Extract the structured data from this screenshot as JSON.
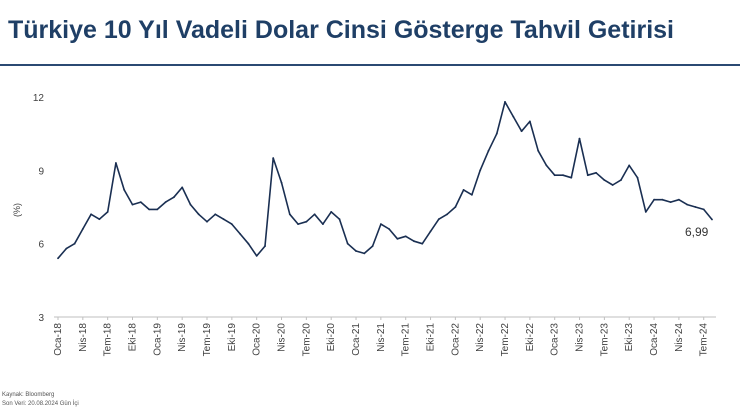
{
  "title": "Türkiye 10 Yıl Vadeli Dolar Cinsi Gösterge Tahvil Getirisi",
  "source": {
    "line1": "Kaynak: Bloomberg",
    "line2": "Son Veri: 20.08.2024 Gün İçi"
  },
  "colors": {
    "line": "#1a2f52",
    "title": "#1f3f66",
    "axis": "#bfbfbf"
  },
  "chart_data": {
    "type": "line",
    "title": "Türkiye 10 Yıl Vadeli Dolar Cinsi Gösterge Tahvil Getirisi",
    "ylabel": "(%)",
    "xlabel": "",
    "ylim": [
      3,
      12
    ],
    "yticks": [
      3,
      6,
      9,
      12
    ],
    "grid": false,
    "legend": "none",
    "xlim": [
      "2018-01",
      "2024-08"
    ],
    "xticks": [
      "Oca-18",
      "Nis-18",
      "Tem-18",
      "Eki-18",
      "Oca-19",
      "Nis-19",
      "Tem-19",
      "Eki-19",
      "Oca-20",
      "Nis-20",
      "Tem-20",
      "Eki-20",
      "Oca-21",
      "Nis-21",
      "Tem-21",
      "Eki-21",
      "Oca-22",
      "Nis-22",
      "Tem-22",
      "Eki-22",
      "Oca-23",
      "Nis-23",
      "Tem-23",
      "Eki-23",
      "Oca-24",
      "Nis-24",
      "Tem-24"
    ],
    "last_value_label": "6,99",
    "series": [
      {
        "x": [
          "2018-01",
          "2018-02",
          "2018-03",
          "2018-04",
          "2018-05",
          "2018-06",
          "2018-07",
          "2018-08",
          "2018-09",
          "2018-10",
          "2018-11",
          "2018-12",
          "2019-01",
          "2019-02",
          "2019-03",
          "2019-04",
          "2019-05",
          "2019-06",
          "2019-07",
          "2019-08",
          "2019-09",
          "2019-10",
          "2019-11",
          "2019-12",
          "2020-01",
          "2020-02",
          "2020-03",
          "2020-04",
          "2020-05",
          "2020-06",
          "2020-07",
          "2020-08",
          "2020-09",
          "2020-10",
          "2020-11",
          "2020-12",
          "2021-01",
          "2021-02",
          "2021-03",
          "2021-04",
          "2021-05",
          "2021-06",
          "2021-07",
          "2021-08",
          "2021-09",
          "2021-10",
          "2021-11",
          "2021-12",
          "2022-01",
          "2022-02",
          "2022-03",
          "2022-04",
          "2022-05",
          "2022-06",
          "2022-07",
          "2022-08",
          "2022-09",
          "2022-10",
          "2022-11",
          "2022-12",
          "2023-01",
          "2023-02",
          "2023-03",
          "2023-04",
          "2023-05",
          "2023-06",
          "2023-07",
          "2023-08",
          "2023-09",
          "2023-10",
          "2023-11",
          "2023-12",
          "2024-01",
          "2024-02",
          "2024-03",
          "2024-04",
          "2024-05",
          "2024-06",
          "2024-07",
          "2024-08"
        ],
        "values": [
          5.4,
          5.8,
          6.0,
          6.6,
          7.2,
          7.0,
          7.3,
          9.3,
          8.2,
          7.6,
          7.7,
          7.4,
          7.4,
          7.7,
          7.9,
          8.3,
          7.6,
          7.2,
          6.9,
          7.2,
          7.0,
          6.8,
          6.4,
          6.0,
          5.5,
          5.9,
          9.5,
          8.5,
          7.2,
          6.8,
          6.9,
          7.2,
          6.8,
          7.3,
          7.0,
          6.0,
          5.7,
          5.6,
          5.9,
          6.8,
          6.6,
          6.2,
          6.3,
          6.1,
          6.0,
          6.5,
          7.0,
          7.2,
          7.5,
          8.2,
          8.0,
          9.0,
          9.8,
          10.5,
          11.8,
          11.2,
          10.6,
          11.0,
          9.8,
          9.2,
          8.8,
          8.8,
          8.7,
          10.3,
          8.8,
          8.9,
          8.6,
          8.4,
          8.6,
          9.2,
          8.7,
          7.3,
          7.8,
          7.8,
          7.7,
          7.8,
          7.6,
          7.5,
          7.4,
          6.99
        ]
      }
    ]
  }
}
